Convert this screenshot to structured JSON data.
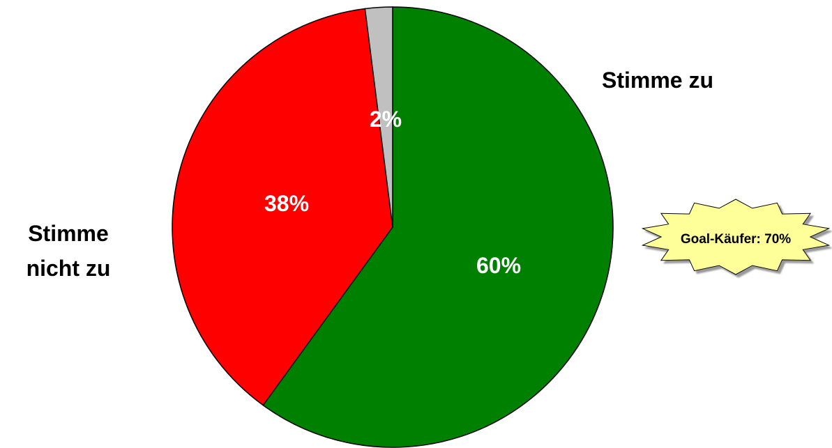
{
  "chart_data": {
    "type": "pie",
    "title": "",
    "slices": [
      {
        "label": "Stimme zu",
        "value": 60,
        "display": "60%",
        "color": "#008000"
      },
      {
        "label": "Stimme nicht zu",
        "value": 38,
        "display": "38%",
        "color": "#ff0000"
      },
      {
        "label": "",
        "value": 2,
        "display": "2%",
        "color": "#c0c0c0"
      }
    ],
    "annotation": {
      "text": "Goal-Käufer: 70%",
      "fill": "#ffff99"
    }
  },
  "labels": {
    "agree": "Stimme zu",
    "disagree_line1": "Stimme",
    "disagree_line2": "nicht zu"
  }
}
